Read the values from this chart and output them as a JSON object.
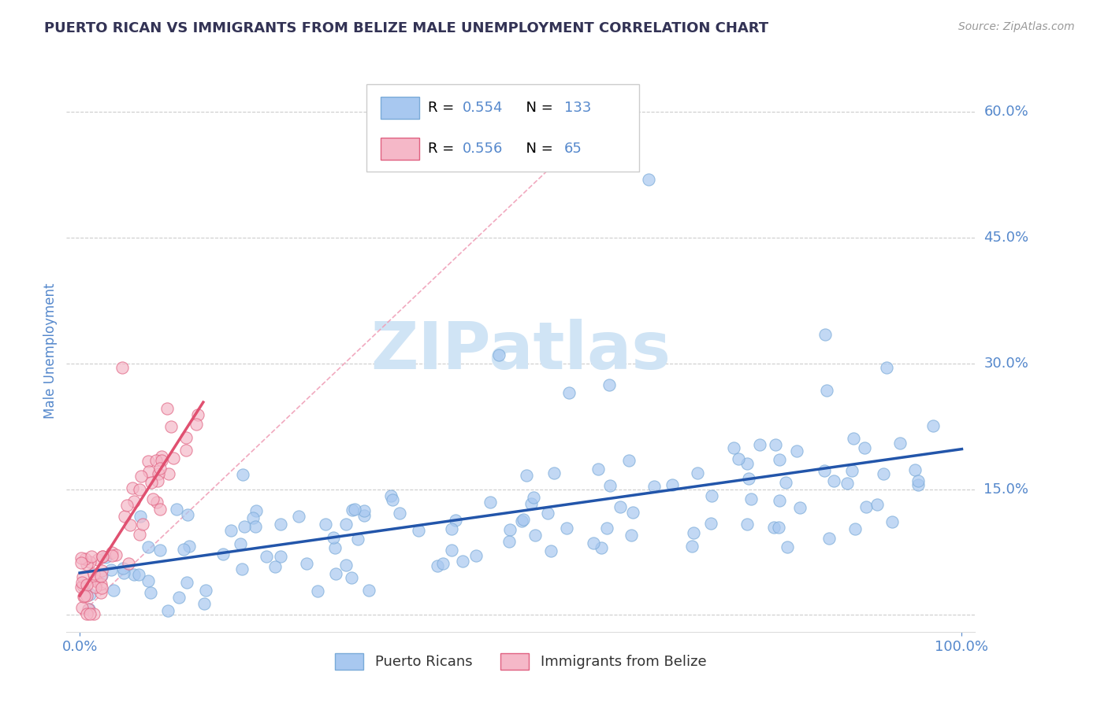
{
  "title": "PUERTO RICAN VS IMMIGRANTS FROM BELIZE MALE UNEMPLOYMENT CORRELATION CHART",
  "source": "Source: ZipAtlas.com",
  "xlim": [
    0.0,
    1.0
  ],
  "ylim": [
    -0.02,
    0.65
  ],
  "ytick_vals": [
    0.0,
    0.15,
    0.3,
    0.45,
    0.6
  ],
  "ytick_labels": [
    "",
    "15.0%",
    "30.0%",
    "45.0%",
    "60.0%"
  ],
  "xtick_vals": [
    0.0,
    1.0
  ],
  "xtick_labels": [
    "0.0%",
    "100.0%"
  ],
  "scatter_color_pr": "#a8c8f0",
  "scatter_edge_pr": "#7aaad8",
  "scatter_color_bz": "#f5b8c8",
  "scatter_edge_bz": "#e06080",
  "line_color_pr": "#2255aa",
  "line_color_bz": "#e05070",
  "dash_color": "#f0a0b8",
  "watermark_color": "#d0e4f5",
  "title_color": "#333355",
  "tick_label_color": "#5588cc",
  "ylabel_color": "#5588cc",
  "grid_color": "#cccccc",
  "legend_box_color": "#eeeeee",
  "legend_border_color": "#cccccc",
  "pr_R": 0.554,
  "pr_N": 133,
  "bz_R": 0.556,
  "bz_N": 65,
  "ylabel": "Male Unemployment",
  "legend_labels": [
    "Puerto Ricans",
    "Immigrants from Belize"
  ],
  "background_color": "#ffffff"
}
